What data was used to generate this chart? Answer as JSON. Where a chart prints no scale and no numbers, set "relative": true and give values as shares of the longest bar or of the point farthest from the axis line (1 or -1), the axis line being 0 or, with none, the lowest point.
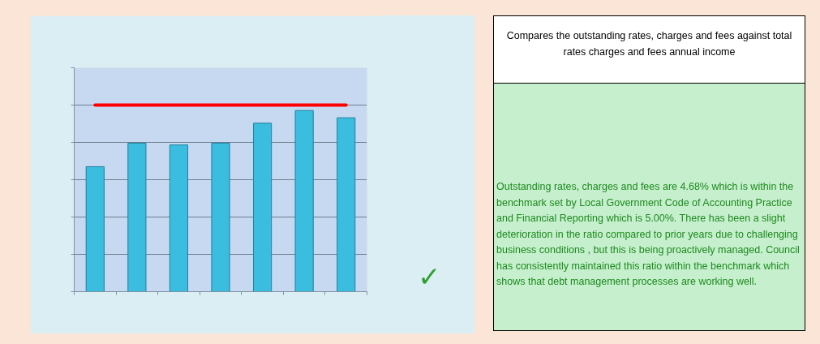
{
  "chart_data": {
    "type": "bar",
    "categories": [
      null,
      null,
      null,
      null,
      null,
      null,
      null
    ],
    "values": [
      0.69,
      0.82,
      0.81,
      0.82,
      0.93,
      1,
      0.96
    ],
    "color": "#3bbde0",
    "relative": true,
    "ref_lines": [
      {
        "axis": "y",
        "value": 1.03,
        "color": "#ff0000"
      }
    ],
    "grid": "y",
    "annotations": [
      "✓",
      "Compares the outstanding rates, charges and fees against total rates charges and fees annual income",
      "Outstanding rates, charges and fees are 4.68% which is within the benchmark set by Local Government Code of Accounting Practice and Financial Reporting which is 5.00%. There has been a slight deterioration in the ratio compared to prior years due to challenging business conditions , but this is being proactively managed.  Council has consistently maintained this ratio within the benchmark which shows that debt management processes are working well."
    ]
  }
}
